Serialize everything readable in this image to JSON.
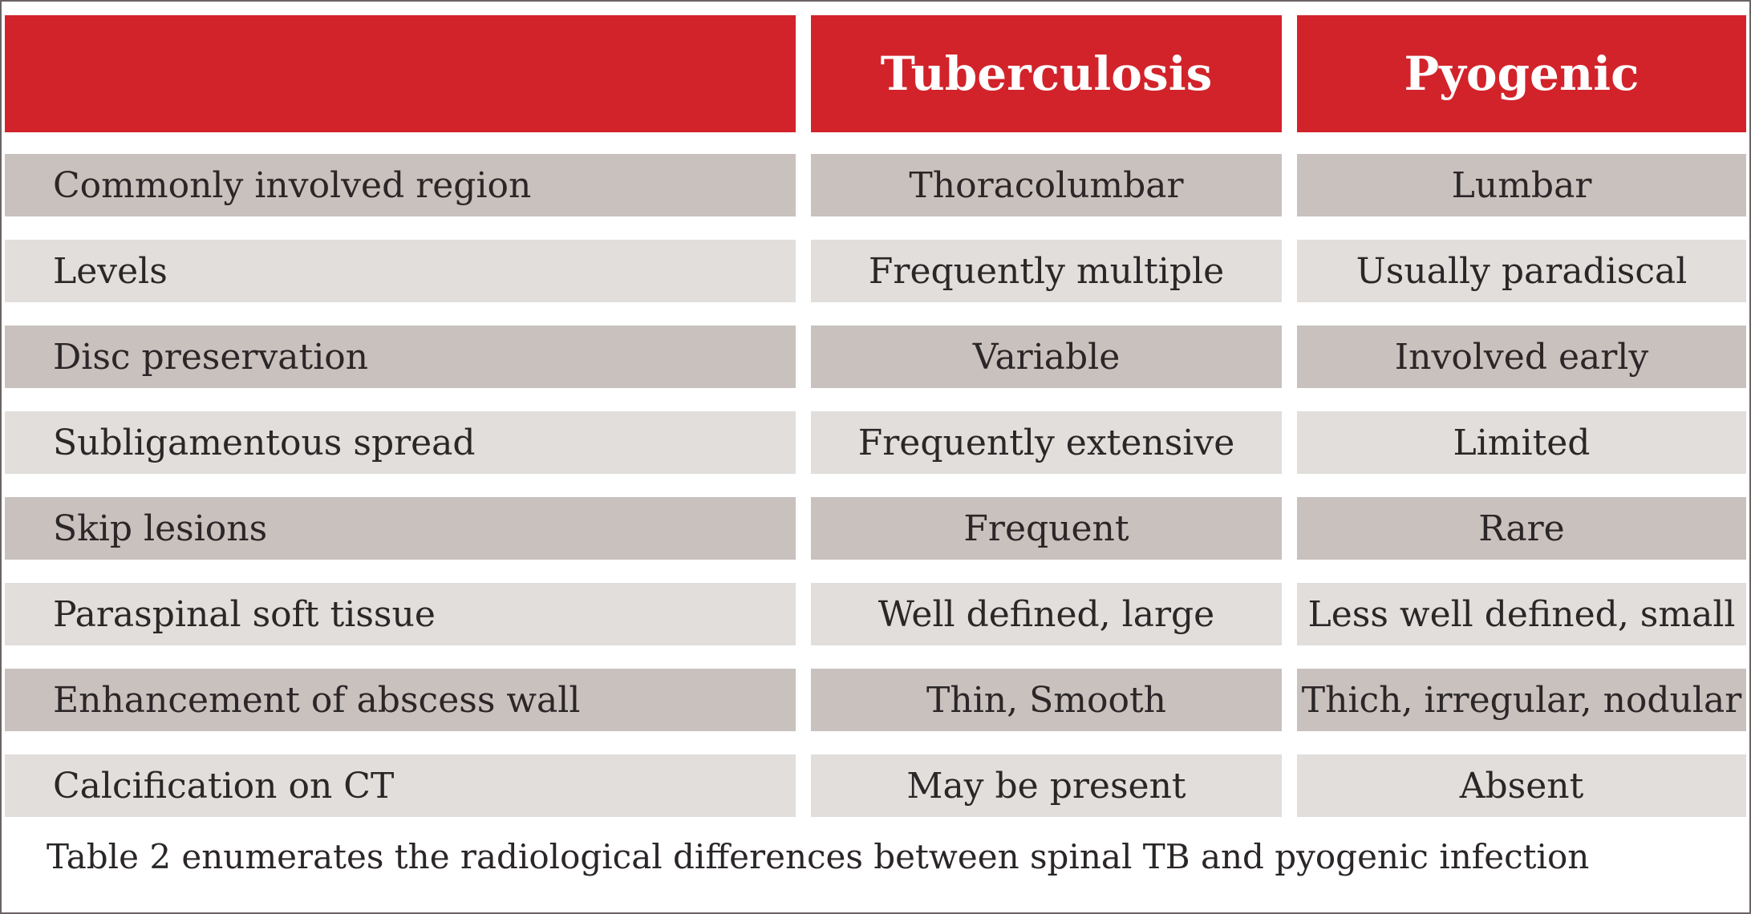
{
  "table": {
    "headers": [
      "",
      "Tuberculosis",
      "Pyogenic"
    ],
    "rows": [
      [
        "Commonly involved region",
        "Thoracolumbar",
        "Lumbar"
      ],
      [
        "Levels",
        "Frequently multiple",
        "Usually paradiscal"
      ],
      [
        "Disc preservation",
        "Variable",
        "Involved early"
      ],
      [
        "Subligamentous spread",
        "Frequently extensive",
        "Limited"
      ],
      [
        "Skip lesions",
        "Frequent",
        "Rare"
      ],
      [
        "Paraspinal soft tissue",
        "Well defined, large",
        "Less well defined, small"
      ],
      [
        "Enhancement of abscess wall",
        "Thin, Smooth",
        "Thich, irregular, nodular"
      ],
      [
        "Calcification on CT",
        "May be present",
        "Absent"
      ]
    ]
  },
  "caption": "Table 2 enumerates the radiological differences between spinal TB and pyogenic infection",
  "colors": {
    "header_bg": "#d2232b",
    "row_dark": "#c8c1be",
    "row_light": "#e1dedb",
    "border": "#6b6264",
    "text": "#2b2627"
  }
}
